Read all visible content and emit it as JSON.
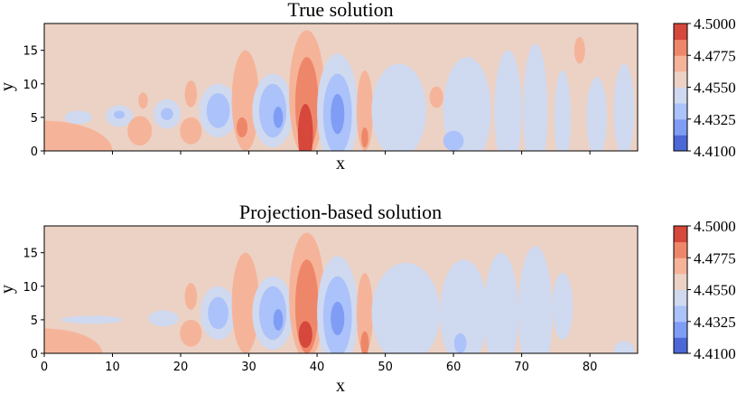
{
  "chart_data": [
    {
      "type": "contour",
      "title": "True solution",
      "xlabel": "x",
      "ylabel": "y",
      "xlim": [
        0,
        87
      ],
      "ylim": [
        0,
        19
      ],
      "xticks": [
        "0",
        "10",
        "20",
        "30",
        "40",
        "50",
        "60",
        "70",
        "80"
      ],
      "xtick_labels_visible": false,
      "yticks": [
        "0",
        "5",
        "10",
        "15"
      ],
      "colorbar": {
        "levels": [
          4.41,
          4.4213,
          4.4325,
          4.4438,
          4.455,
          4.4663,
          4.4775,
          4.4888,
          4.5
        ],
        "tick_labels": [
          "4.4100",
          "4.4325",
          "4.4550",
          "4.4775",
          "4.5000"
        ],
        "colors": [
          "#4c68d6",
          "#7f9df5",
          "#abc2fa",
          "#cfd9f0",
          "#ecd2c5",
          "#f5b49a",
          "#ee8769",
          "#d6473c"
        ]
      },
      "background_level": 4,
      "blobs": [
        {
          "x": 0,
          "y": 0,
          "rx": 10,
          "ry": 4.5,
          "level": 5
        },
        {
          "x": 5,
          "y": 5,
          "rx": 2.0,
          "ry": 1.0,
          "level": 3
        },
        {
          "x": 11,
          "y": 5.2,
          "rx": 2.0,
          "ry": 1.6,
          "level": 3
        },
        {
          "x": 11,
          "y": 5.4,
          "rx": 0.8,
          "ry": 0.6,
          "level": 2
        },
        {
          "x": 14,
          "y": 3,
          "rx": 1.8,
          "ry": 2.2,
          "level": 5
        },
        {
          "x": 14.5,
          "y": 7.5,
          "rx": 0.7,
          "ry": 1.2,
          "level": 5
        },
        {
          "x": 18,
          "y": 5.5,
          "rx": 2.0,
          "ry": 2.2,
          "level": 3
        },
        {
          "x": 18,
          "y": 5.5,
          "rx": 0.9,
          "ry": 0.9,
          "level": 2
        },
        {
          "x": 21.5,
          "y": 3,
          "rx": 1.6,
          "ry": 2.0,
          "level": 5
        },
        {
          "x": 21.5,
          "y": 8.5,
          "rx": 0.9,
          "ry": 2.0,
          "level": 5
        },
        {
          "x": 25.5,
          "y": 6,
          "rx": 2.8,
          "ry": 4.0,
          "level": 3
        },
        {
          "x": 25.5,
          "y": 6,
          "rx": 1.7,
          "ry": 2.6,
          "level": 2
        },
        {
          "x": 29.5,
          "y": 7.5,
          "rx": 2.0,
          "ry": 7.5,
          "level": 5
        },
        {
          "x": 29,
          "y": 3.5,
          "rx": 0.8,
          "ry": 1.5,
          "level": 6
        },
        {
          "x": 33.5,
          "y": 6,
          "rx": 3.0,
          "ry": 5.5,
          "level": 3
        },
        {
          "x": 33.5,
          "y": 6,
          "rx": 2.0,
          "ry": 4.0,
          "level": 2
        },
        {
          "x": 34.3,
          "y": 5,
          "rx": 0.7,
          "ry": 1.6,
          "level": 1
        },
        {
          "x": 38.5,
          "y": 8.5,
          "rx": 2.6,
          "ry": 9.5,
          "level": 5
        },
        {
          "x": 38.5,
          "y": 7,
          "rx": 1.7,
          "ry": 7.0,
          "level": 6
        },
        {
          "x": 38.3,
          "y": 2.5,
          "rx": 1.1,
          "ry": 4.5,
          "level": 7
        },
        {
          "x": 43,
          "y": 6,
          "rx": 3.0,
          "ry": 8.5,
          "level": 3
        },
        {
          "x": 43,
          "y": 5.5,
          "rx": 2.1,
          "ry": 6.0,
          "level": 2
        },
        {
          "x": 43,
          "y": 5.5,
          "rx": 1.0,
          "ry": 3.0,
          "level": 1
        },
        {
          "x": 47,
          "y": 6,
          "rx": 1.2,
          "ry": 6.0,
          "level": 5
        },
        {
          "x": 47,
          "y": 2,
          "rx": 0.5,
          "ry": 1.5,
          "level": 6
        },
        {
          "x": 52,
          "y": 6,
          "rx": 4.0,
          "ry": 7.0,
          "level": 3
        },
        {
          "x": 57.5,
          "y": 8,
          "rx": 1.0,
          "ry": 1.6,
          "level": 5
        },
        {
          "x": 62,
          "y": 6,
          "rx": 3.5,
          "ry": 8.0,
          "level": 3
        },
        {
          "x": 60,
          "y": 1.5,
          "rx": 1.5,
          "ry": 1.5,
          "level": 2
        },
        {
          "x": 68,
          "y": 6,
          "rx": 2.0,
          "ry": 9.0,
          "level": 3
        },
        {
          "x": 72,
          "y": 6,
          "rx": 1.8,
          "ry": 10.0,
          "level": 3
        },
        {
          "x": 76,
          "y": 5,
          "rx": 1.2,
          "ry": 7.0,
          "level": 3
        },
        {
          "x": 78.5,
          "y": 15,
          "rx": 0.8,
          "ry": 2.0,
          "level": 5
        },
        {
          "x": 81,
          "y": 5,
          "rx": 1.5,
          "ry": 6.0,
          "level": 3
        },
        {
          "x": 85,
          "y": 6,
          "rx": 1.5,
          "ry": 7.0,
          "level": 3
        }
      ]
    },
    {
      "type": "contour",
      "title": "Projection-based solution",
      "xlabel": "x",
      "ylabel": "y",
      "xlim": [
        0,
        87
      ],
      "ylim": [
        0,
        19
      ],
      "xticks": [
        "0",
        "10",
        "20",
        "30",
        "40",
        "50",
        "60",
        "70",
        "80"
      ],
      "xtick_labels_visible": true,
      "yticks": [
        "0",
        "5",
        "10",
        "15"
      ],
      "colorbar": {
        "levels": [
          4.41,
          4.4213,
          4.4325,
          4.4438,
          4.455,
          4.4663,
          4.4775,
          4.4888,
          4.5
        ],
        "tick_labels": [
          "4.4100",
          "4.4325",
          "4.4550",
          "4.4775",
          "4.5000"
        ],
        "colors": [
          "#4c68d6",
          "#7f9df5",
          "#abc2fa",
          "#cfd9f0",
          "#ecd2c5",
          "#f5b49a",
          "#ee8769",
          "#d6473c"
        ]
      },
      "background_level": 4,
      "blobs": [
        {
          "x": 0,
          "y": 0,
          "rx": 8.5,
          "ry": 3.7,
          "level": 5
        },
        {
          "x": 7,
          "y": 5,
          "rx": 4.5,
          "ry": 0.6,
          "level": 3
        },
        {
          "x": 17.5,
          "y": 5.2,
          "rx": 2.2,
          "ry": 1.2,
          "level": 3
        },
        {
          "x": 21.5,
          "y": 3,
          "rx": 1.6,
          "ry": 2.0,
          "level": 5
        },
        {
          "x": 21.5,
          "y": 8.5,
          "rx": 0.9,
          "ry": 2.0,
          "level": 5
        },
        {
          "x": 25.5,
          "y": 6,
          "rx": 2.6,
          "ry": 4.0,
          "level": 3
        },
        {
          "x": 25.5,
          "y": 6,
          "rx": 1.5,
          "ry": 2.4,
          "level": 2
        },
        {
          "x": 29.5,
          "y": 7.5,
          "rx": 2.0,
          "ry": 7.5,
          "level": 5
        },
        {
          "x": 33.5,
          "y": 6,
          "rx": 3.0,
          "ry": 5.5,
          "level": 3
        },
        {
          "x": 33.5,
          "y": 6,
          "rx": 2.0,
          "ry": 4.0,
          "level": 2
        },
        {
          "x": 34.3,
          "y": 5,
          "rx": 0.7,
          "ry": 1.6,
          "level": 1
        },
        {
          "x": 38.5,
          "y": 8.5,
          "rx": 2.6,
          "ry": 9.5,
          "level": 5
        },
        {
          "x": 38.5,
          "y": 7,
          "rx": 1.7,
          "ry": 7.0,
          "level": 6
        },
        {
          "x": 38.3,
          "y": 2.8,
          "rx": 1.0,
          "ry": 2.0,
          "level": 7
        },
        {
          "x": 43,
          "y": 6,
          "rx": 3.0,
          "ry": 8.5,
          "level": 3
        },
        {
          "x": 43,
          "y": 5.5,
          "rx": 2.1,
          "ry": 6.0,
          "level": 2
        },
        {
          "x": 43,
          "y": 5.2,
          "rx": 1.0,
          "ry": 2.5,
          "level": 1
        },
        {
          "x": 47,
          "y": 6,
          "rx": 1.2,
          "ry": 6.0,
          "level": 5
        },
        {
          "x": 47,
          "y": 1.5,
          "rx": 0.6,
          "ry": 1.8,
          "level": 6
        },
        {
          "x": 53,
          "y": 6,
          "rx": 5.0,
          "ry": 7.5,
          "level": 3
        },
        {
          "x": 61.5,
          "y": 6,
          "rx": 3.5,
          "ry": 8.0,
          "level": 3
        },
        {
          "x": 61,
          "y": 1.5,
          "rx": 0.9,
          "ry": 1.5,
          "level": 2
        },
        {
          "x": 67,
          "y": 6,
          "rx": 2.5,
          "ry": 9.0,
          "level": 3
        },
        {
          "x": 72,
          "y": 6,
          "rx": 2.5,
          "ry": 10.0,
          "level": 3
        },
        {
          "x": 76,
          "y": 7,
          "rx": 1.5,
          "ry": 5.0,
          "level": 3
        },
        {
          "x": 85,
          "y": 0.5,
          "rx": 1.5,
          "ry": 1.3,
          "level": 3
        }
      ]
    }
  ]
}
